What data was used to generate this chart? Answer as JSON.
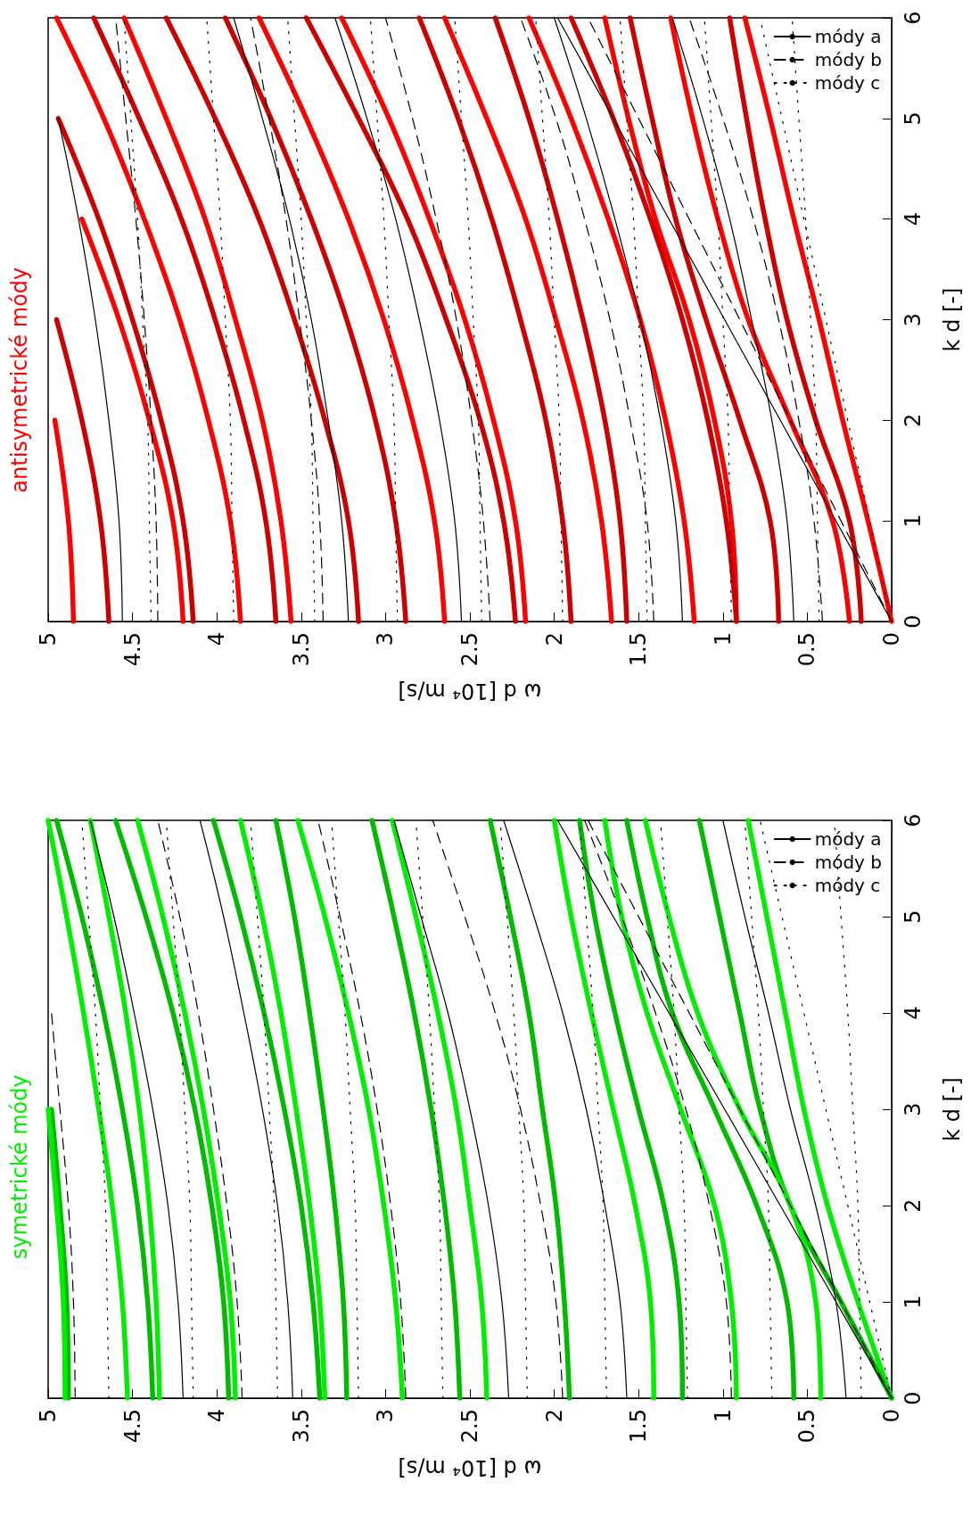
{
  "chart_data": [
    {
      "type": "line",
      "title": "antisymetrické módy",
      "xlabel": "ω d [10⁴ m/s]",
      "ylabel": "k d [-]",
      "xlim": [
        5,
        0
      ],
      "xticks": [
        5,
        4.5,
        4,
        3.5,
        3,
        2.5,
        2,
        1.5,
        1,
        0.5,
        0
      ],
      "ylim": [
        0,
        6
      ],
      "yticks": [
        0,
        1,
        2,
        3,
        4,
        5,
        6
      ],
      "grid": false,
      "legend": "top right",
      "marker": "none",
      "series": [
        {
          "color": "#ff0000",
          "line_style": "solid",
          "x": [
            0,
            0.14,
            0.29,
            0.43,
            0.58,
            0.72,
            0.87
          ],
          "values": [
            0,
            1,
            2,
            3,
            4,
            5,
            6
          ]
        },
        {
          "color": "#cc0000",
          "line_style": "solid",
          "x": [
            0.18,
            0.25,
            0.45,
            0.62,
            0.75,
            0.86,
            0.96
          ],
          "values": [
            0,
            1,
            2,
            3,
            4,
            5,
            6
          ]
        },
        {
          "color": "#ff0000",
          "line_style": "solid",
          "x": [
            0.25,
            0.35,
            0.6,
            0.85,
            1.03,
            1.18,
            1.31
          ],
          "values": [
            0,
            1,
            2,
            3,
            4,
            5,
            6
          ]
        },
        {
          "color": "#cc0000",
          "line_style": "solid",
          "x": [
            0.67,
            0.72,
            0.9,
            1.1,
            1.28,
            1.42,
            1.55
          ],
          "values": [
            0,
            1,
            2,
            3,
            4,
            5,
            6
          ]
        },
        {
          "color": "#ff0000",
          "line_style": "solid",
          "x": [
            0.92,
            0.95,
            1.05,
            1.2,
            1.4,
            1.56,
            1.7
          ],
          "values": [
            0,
            1,
            2,
            3,
            4,
            5,
            6
          ]
        },
        {
          "color": "#cc0000",
          "line_style": "solid",
          "x": [
            0.92,
            0.98,
            1.09,
            1.24,
            1.43,
            1.65,
            1.9
          ],
          "values": [
            0,
            1,
            2,
            3,
            4,
            5,
            6
          ]
        },
        {
          "color": "#ff0000",
          "line_style": "solid",
          "x": [
            1.17,
            1.23,
            1.34,
            1.49,
            1.68,
            1.9,
            2.15
          ],
          "values": [
            0,
            1,
            2,
            3,
            4,
            5,
            6
          ]
        },
        {
          "color": "#cc0000",
          "line_style": "solid",
          "x": [
            1.57,
            1.61,
            1.7,
            1.83,
            1.98,
            2.15,
            2.35
          ],
          "values": [
            0,
            1,
            2,
            3,
            4,
            5,
            6
          ]
        },
        {
          "color": "#ff0000",
          "line_style": "solid",
          "x": [
            1.66,
            1.72,
            1.83,
            1.99,
            2.17,
            2.4,
            2.65
          ],
          "values": [
            0,
            1,
            2,
            3,
            4,
            5,
            6
          ]
        },
        {
          "color": "#cc0000",
          "line_style": "solid",
          "x": [
            1.9,
            1.95,
            2.05,
            2.2,
            2.37,
            2.57,
            2.8
          ],
          "values": [
            0,
            1,
            2,
            3,
            4,
            5,
            6
          ]
        },
        {
          "color": "#ff0000",
          "line_style": "solid",
          "x": [
            2.17,
            2.23,
            2.36,
            2.53,
            2.74,
            2.98,
            3.26
          ],
          "values": [
            0,
            1,
            2,
            3,
            4,
            5,
            6
          ]
        },
        {
          "color": "#cc0000",
          "line_style": "solid",
          "x": [
            2.23,
            2.3,
            2.44,
            2.64,
            2.87,
            3.16,
            3.47
          ],
          "values": [
            0,
            1,
            2,
            3,
            4,
            5,
            6
          ]
        },
        {
          "color": "#ff0000",
          "line_style": "solid",
          "x": [
            2.65,
            2.71,
            2.84,
            3.01,
            3.22,
            3.47,
            3.75
          ],
          "values": [
            0,
            1,
            2,
            3,
            4,
            5,
            6
          ]
        },
        {
          "color": "#cc0000",
          "line_style": "solid",
          "x": [
            2.88,
            2.94,
            3.06,
            3.23,
            3.44,
            3.68,
            3.95
          ],
          "values": [
            0,
            1,
            2,
            3,
            4,
            5,
            6
          ]
        },
        {
          "color": "#cc0000",
          "line_style": "solid",
          "x": [
            3.16,
            3.22,
            3.36,
            3.54,
            3.75,
            4.01,
            4.3
          ],
          "values": [
            0,
            1,
            2,
            3,
            4,
            5,
            6
          ]
        },
        {
          "color": "#ff0000",
          "line_style": "solid",
          "x": [
            3.56,
            3.62,
            3.73,
            3.89,
            4.07,
            4.3,
            4.55
          ],
          "values": [
            0,
            1,
            2,
            3,
            4,
            5,
            6
          ]
        },
        {
          "color": "#cc0000",
          "line_style": "solid",
          "x": [
            3.65,
            3.71,
            3.84,
            4.01,
            4.21,
            4.46,
            4.73
          ],
          "values": [
            0,
            1,
            2,
            3,
            4,
            5,
            6
          ]
        },
        {
          "color": "#ff0000",
          "line_style": "solid",
          "x": [
            3.86,
            3.92,
            4.05,
            4.22,
            4.43,
            4.67,
            4.95
          ],
          "values": [
            0,
            1,
            2,
            3,
            4,
            5,
            6
          ]
        },
        {
          "color": "#cc0000",
          "line_style": "solid",
          "x": [
            4.14,
            4.2,
            4.33,
            4.5,
            4.7,
            4.94
          ],
          "values": [
            0,
            1,
            2,
            3,
            4,
            5
          ]
        },
        {
          "color": "#ff0000",
          "line_style": "solid",
          "x": [
            4.2,
            4.26,
            4.4,
            4.58,
            4.8
          ],
          "values": [
            0,
            1,
            2,
            3,
            4
          ]
        },
        {
          "color": "#cc0000",
          "line_style": "solid",
          "x": [
            4.64,
            4.69,
            4.8,
            4.95
          ],
          "values": [
            0,
            1,
            2,
            3
          ]
        },
        {
          "color": "#ff0000",
          "line_style": "solid",
          "x": [
            4.85,
            4.88,
            4.96
          ],
          "values": [
            0,
            1,
            2
          ]
        },
        {
          "name": "módy a",
          "color": "#000000",
          "line_style": "solid",
          "x": [
            0,
            0.33,
            0.66,
            0.99,
            1.32,
            1.65,
            1.98
          ],
          "values": [
            0,
            1,
            2,
            3,
            4,
            5,
            6
          ]
        },
        {
          "color": "#000000",
          "line_style": "solid",
          "x": [
            0.58,
            0.62,
            0.71,
            0.83,
            0.96,
            1.12,
            1.3
          ],
          "values": [
            0,
            1,
            2,
            3,
            4,
            5,
            6
          ]
        },
        {
          "color": "#000000",
          "line_style": "solid",
          "x": [
            1.24,
            1.28,
            1.37,
            1.49,
            1.64,
            1.81,
            2.0
          ],
          "values": [
            0,
            1,
            2,
            3,
            4,
            5,
            6
          ]
        },
        {
          "color": "#000000",
          "line_style": "solid",
          "x": [
            2.55,
            2.59,
            2.68,
            2.8,
            2.94,
            3.11,
            3.3
          ],
          "values": [
            0,
            1,
            2,
            3,
            4,
            5,
            6
          ]
        },
        {
          "color": "#000000",
          "line_style": "solid",
          "x": [
            3.22,
            3.26,
            3.34,
            3.44,
            3.57,
            3.73,
            3.9
          ],
          "values": [
            0,
            1,
            2,
            3,
            4,
            5,
            6
          ]
        },
        {
          "color": "#000000",
          "line_style": "solid",
          "x": [
            4.56,
            4.58,
            4.64,
            4.72,
            4.82,
            4.94
          ],
          "values": [
            0,
            1,
            2,
            3,
            4,
            5
          ]
        },
        {
          "name": "módy b",
          "color": "#000000",
          "line_style": "dashed",
          "x": [
            0,
            0.3,
            0.6,
            0.9,
            1.2,
            1.5,
            1.8
          ],
          "values": [
            0,
            1,
            2,
            3,
            4,
            5,
            6
          ]
        },
        {
          "color": "#000000",
          "line_style": "dashed",
          "x": [
            0.41,
            0.46,
            0.55,
            0.67,
            0.82,
            1.0,
            1.2
          ],
          "values": [
            0,
            1,
            2,
            3,
            4,
            5,
            6
          ]
        },
        {
          "color": "#000000",
          "line_style": "dashed",
          "x": [
            1.41,
            1.45,
            1.55,
            1.67,
            1.82,
            1.99,
            2.2
          ],
          "values": [
            0,
            1,
            2,
            3,
            4,
            5,
            6
          ]
        },
        {
          "color": "#000000",
          "line_style": "dashed",
          "x": [
            2.38,
            2.42,
            2.49,
            2.58,
            2.7,
            2.84,
            3.0
          ],
          "values": [
            0,
            1,
            2,
            3,
            4,
            5,
            6
          ]
        },
        {
          "color": "#000000",
          "line_style": "dashed",
          "x": [
            3.37,
            3.39,
            3.44,
            3.51,
            3.59,
            3.69,
            3.8
          ],
          "values": [
            0,
            1,
            2,
            3,
            4,
            5,
            6
          ]
        },
        {
          "color": "#000000",
          "line_style": "dashed",
          "x": [
            4.35,
            4.36,
            4.39,
            4.43,
            4.48,
            4.54,
            4.6
          ],
          "values": [
            0,
            1,
            2,
            3,
            4,
            5,
            6
          ]
        },
        {
          "name": "módy c",
          "color": "#000000",
          "line_style": "dotted",
          "x": [
            0,
            0.13,
            0.26,
            0.39,
            0.52,
            0.65,
            0.78
          ],
          "values": [
            0,
            1,
            2,
            3,
            4,
            5,
            6
          ]
        },
        {
          "color": "#000000",
          "line_style": "dotted",
          "x": [
            0.43,
            0.44,
            0.45,
            0.48,
            0.51,
            0.55,
            0.59
          ],
          "values": [
            0,
            1,
            2,
            3,
            4,
            5,
            6
          ]
        },
        {
          "color": "#000000",
          "line_style": "dotted",
          "x": [
            0.95,
            0.96,
            0.97,
            1.0,
            1.03,
            1.07,
            1.11
          ],
          "values": [
            0,
            1,
            2,
            3,
            4,
            5,
            6
          ]
        },
        {
          "color": "#000000",
          "line_style": "dotted",
          "x": [
            1.45,
            1.46,
            1.47,
            1.5,
            1.53,
            1.57,
            1.61
          ],
          "values": [
            0,
            1,
            2,
            3,
            4,
            5,
            6
          ]
        },
        {
          "color": "#000000",
          "line_style": "dotted",
          "x": [
            1.95,
            1.96,
            1.97,
            2.0,
            2.03,
            2.07,
            2.11
          ],
          "values": [
            0,
            1,
            2,
            3,
            4,
            5,
            6
          ]
        },
        {
          "color": "#000000",
          "line_style": "dotted",
          "x": [
            2.43,
            2.44,
            2.45,
            2.48,
            2.51,
            2.55,
            2.59
          ],
          "values": [
            0,
            1,
            2,
            3,
            4,
            5,
            6
          ]
        },
        {
          "color": "#000000",
          "line_style": "dotted",
          "x": [
            2.93,
            2.94,
            2.95,
            2.98,
            3.01,
            3.05,
            3.09
          ],
          "values": [
            0,
            1,
            2,
            3,
            4,
            5,
            6
          ]
        },
        {
          "color": "#000000",
          "line_style": "dotted",
          "x": [
            3.42,
            3.43,
            3.44,
            3.47,
            3.5,
            3.54,
            3.58
          ],
          "values": [
            0,
            1,
            2,
            3,
            4,
            5,
            6
          ]
        },
        {
          "color": "#000000",
          "line_style": "dotted",
          "x": [
            3.9,
            3.91,
            3.92,
            3.95,
            3.98,
            4.02,
            4.06
          ],
          "values": [
            0,
            1,
            2,
            3,
            4,
            5,
            6
          ]
        },
        {
          "color": "#000000",
          "line_style": "dotted",
          "x": [
            4.39,
            4.4,
            4.41,
            4.44,
            4.47,
            4.51,
            4.55
          ],
          "values": [
            0,
            1,
            2,
            3,
            4,
            5,
            6
          ]
        }
      ]
    },
    {
      "type": "line",
      "title": "symetrické módy",
      "xlabel": "ω d [10⁴ m/s]",
      "ylabel": "k d [-]",
      "xlim": [
        5,
        0
      ],
      "xticks": [
        5,
        4.5,
        4,
        3.5,
        3,
        2.5,
        2,
        1.5,
        1,
        0.5,
        0
      ],
      "ylim": [
        0,
        6
      ],
      "yticks": [
        0,
        1,
        2,
        3,
        4,
        5,
        6
      ],
      "grid": false,
      "legend": "top right",
      "marker": "none",
      "series": [
        {
          "color": "#00ee00",
          "line_style": "solid",
          "x": [
            0,
            0.2,
            0.38,
            0.52,
            0.63,
            0.74,
            0.85
          ],
          "values": [
            0,
            1,
            2,
            3,
            4,
            5,
            6
          ]
        },
        {
          "color": "#00bb00",
          "line_style": "solid",
          "x": [
            0,
            0.3,
            0.6,
            0.78,
            0.9,
            1.02,
            1.14
          ],
          "values": [
            0,
            1,
            2,
            3,
            4,
            5,
            6
          ]
        },
        {
          "color": "#00ee00",
          "line_style": "solid",
          "x": [
            0.42,
            0.45,
            0.6,
            0.9,
            1.15,
            1.32,
            1.46
          ],
          "values": [
            0,
            1,
            2,
            3,
            4,
            5,
            6
          ]
        },
        {
          "color": "#00bb00",
          "line_style": "solid",
          "x": [
            0.58,
            0.62,
            0.8,
            1.05,
            1.3,
            1.45,
            1.57
          ],
          "values": [
            0,
            1,
            2,
            3,
            4,
            5,
            6
          ]
        },
        {
          "color": "#00ee00",
          "line_style": "solid",
          "x": [
            0.92,
            0.95,
            1.05,
            1.25,
            1.45,
            1.6,
            1.7
          ],
          "values": [
            0,
            1,
            2,
            3,
            4,
            5,
            6
          ]
        },
        {
          "color": "#00bb00",
          "line_style": "solid",
          "x": [
            1.24,
            1.26,
            1.35,
            1.5,
            1.64,
            1.76,
            1.85
          ],
          "values": [
            0,
            1,
            2,
            3,
            4,
            5,
            6
          ]
        },
        {
          "color": "#00ee00",
          "line_style": "solid",
          "x": [
            1.41,
            1.43,
            1.52,
            1.65,
            1.78,
            1.9,
            2.0
          ],
          "values": [
            0,
            1,
            2,
            3,
            4,
            5,
            6
          ]
        },
        {
          "color": "#00bb00",
          "line_style": "solid",
          "x": [
            1.91,
            1.94,
            1.99,
            2.07,
            2.15,
            2.26,
            2.38
          ],
          "values": [
            0,
            1,
            2,
            3,
            4,
            5,
            6
          ]
        },
        {
          "color": "#00ee00",
          "line_style": "solid",
          "x": [
            2.4,
            2.43,
            2.5,
            2.58,
            2.69,
            2.82,
            2.96
          ],
          "values": [
            0,
            1,
            2,
            3,
            4,
            5,
            6
          ]
        },
        {
          "color": "#00bb00",
          "line_style": "solid",
          "x": [
            2.56,
            2.59,
            2.65,
            2.73,
            2.83,
            2.95,
            3.08
          ],
          "values": [
            0,
            1,
            2,
            3,
            4,
            5,
            6
          ]
        },
        {
          "color": "#00ee00",
          "line_style": "solid",
          "x": [
            2.9,
            2.94,
            3.01,
            3.1,
            3.22,
            3.36,
            3.52
          ],
          "values": [
            0,
            1,
            2,
            3,
            4,
            5,
            6
          ]
        },
        {
          "color": "#00bb00",
          "line_style": "solid",
          "x": [
            3.23,
            3.25,
            3.3,
            3.37,
            3.45,
            3.54,
            3.65
          ],
          "values": [
            0,
            1,
            2,
            3,
            4,
            5,
            6
          ]
        },
        {
          "color": "#00ee00",
          "line_style": "solid",
          "x": [
            3.36,
            3.39,
            3.45,
            3.53,
            3.62,
            3.73,
            3.86
          ],
          "values": [
            0,
            1,
            2,
            3,
            4,
            5,
            6
          ]
        },
        {
          "color": "#00bb00",
          "line_style": "solid",
          "x": [
            3.39,
            3.43,
            3.5,
            3.6,
            3.72,
            3.86,
            4.02
          ],
          "values": [
            0,
            1,
            2,
            3,
            4,
            5,
            6
          ]
        },
        {
          "color": "#00ee00",
          "line_style": "solid",
          "x": [
            3.89,
            3.92,
            3.99,
            4.08,
            4.19,
            4.32,
            4.47
          ],
          "values": [
            0,
            1,
            2,
            3,
            4,
            5,
            6
          ]
        },
        {
          "color": "#00bb00",
          "line_style": "solid",
          "x": [
            3.93,
            3.96,
            4.03,
            4.13,
            4.26,
            4.42,
            4.6
          ],
          "values": [
            0,
            1,
            2,
            3,
            4,
            5,
            6
          ]
        },
        {
          "color": "#00ee00",
          "line_style": "solid",
          "x": [
            4.34,
            4.36,
            4.4,
            4.46,
            4.54,
            4.64,
            4.75
          ],
          "values": [
            0,
            1,
            2,
            3,
            4,
            5,
            6
          ]
        },
        {
          "color": "#00bb00",
          "line_style": "solid",
          "x": [
            4.38,
            4.41,
            4.47,
            4.56,
            4.67,
            4.8,
            4.95
          ],
          "values": [
            0,
            1,
            2,
            3,
            4,
            5,
            6
          ]
        },
        {
          "color": "#00ee00",
          "line_style": "solid",
          "x": [
            4.53,
            4.56,
            4.62,
            4.7,
            4.79,
            4.89,
            5.0
          ],
          "values": [
            0,
            1,
            2,
            3,
            4,
            5,
            6
          ]
        },
        {
          "color": "#00bb00",
          "line_style": "solid",
          "x": [
            4.88,
            4.89,
            4.93,
            4.98
          ],
          "values": [
            0,
            1,
            2,
            3
          ]
        },
        {
          "color": "#00ee00",
          "line_style": "solid",
          "x": [
            4.9,
            4.91,
            4.95,
            5.0
          ],
          "values": [
            0,
            1,
            2,
            3
          ]
        },
        {
          "name": "módy a",
          "color": "#000000",
          "line_style": "solid",
          "x": [
            0,
            0.33,
            0.66,
            0.99,
            1.32,
            1.65,
            1.98
          ],
          "values": [
            0,
            1,
            2,
            3,
            4,
            5,
            6
          ]
        },
        {
          "color": "#000000",
          "line_style": "solid",
          "x": [
            0.27,
            0.33,
            0.45,
            0.6,
            0.73,
            0.87,
            1.0
          ],
          "values": [
            0,
            1,
            2,
            3,
            4,
            5,
            6
          ]
        },
        {
          "color": "#000000",
          "line_style": "solid",
          "x": [
            1.57,
            1.61,
            1.7,
            1.81,
            1.95,
            2.12,
            2.3
          ],
          "values": [
            0,
            1,
            2,
            3,
            4,
            5,
            6
          ]
        },
        {
          "color": "#000000",
          "line_style": "solid",
          "x": [
            2.27,
            2.31,
            2.39,
            2.5,
            2.63,
            2.79,
            2.95
          ],
          "values": [
            0,
            1,
            2,
            3,
            4,
            5,
            6
          ]
        },
        {
          "color": "#000000",
          "line_style": "solid",
          "x": [
            3.55,
            3.58,
            3.64,
            3.73,
            3.84,
            3.96,
            4.1
          ],
          "values": [
            0,
            1,
            2,
            3,
            4,
            5,
            6
          ]
        },
        {
          "color": "#000000",
          "line_style": "solid",
          "x": [
            4.2,
            4.23,
            4.29,
            4.38,
            4.49,
            4.61,
            4.75
          ],
          "values": [
            0,
            1,
            2,
            3,
            4,
            5,
            6
          ]
        },
        {
          "name": "módy b",
          "color": "#000000",
          "line_style": "dashed",
          "x": [
            0,
            0.3,
            0.6,
            0.9,
            1.2,
            1.5,
            1.8
          ],
          "values": [
            0,
            1,
            2,
            3,
            4,
            5,
            6
          ]
        },
        {
          "color": "#000000",
          "line_style": "dashed",
          "x": [
            0.95,
            0.98,
            1.08,
            1.22,
            1.4,
            1.6,
            1.82
          ],
          "values": [
            0,
            1,
            2,
            3,
            4,
            5,
            6
          ]
        },
        {
          "color": "#000000",
          "line_style": "dashed",
          "x": [
            1.95,
            1.99,
            2.08,
            2.2,
            2.35,
            2.53,
            2.72
          ],
          "values": [
            0,
            1,
            2,
            3,
            4,
            5,
            6
          ]
        },
        {
          "color": "#000000",
          "line_style": "dashed",
          "x": [
            2.88,
            2.91,
            2.97,
            3.05,
            3.15,
            3.27,
            3.4
          ],
          "values": [
            0,
            1,
            2,
            3,
            4,
            5,
            6
          ]
        },
        {
          "color": "#000000",
          "line_style": "dashed",
          "x": [
            3.85,
            3.88,
            3.94,
            4.02,
            4.11,
            4.22,
            4.35
          ],
          "values": [
            0,
            1,
            2,
            3,
            4,
            5,
            6
          ]
        },
        {
          "color": "#000000",
          "line_style": "dashed",
          "x": [
            4.84,
            4.85,
            4.88,
            4.93,
            4.98
          ],
          "values": [
            0,
            1,
            2,
            3,
            4
          ]
        },
        {
          "name": "módy c",
          "color": "#000000",
          "line_style": "dotted",
          "x": [
            0,
            0.13,
            0.26,
            0.39,
            0.52,
            0.65,
            0.78
          ],
          "values": [
            0,
            1,
            2,
            3,
            4,
            5,
            6
          ]
        },
        {
          "color": "#000000",
          "line_style": "dotted",
          "x": [
            0.18,
            0.19,
            0.2,
            0.23,
            0.26,
            0.3,
            0.34
          ],
          "values": [
            0,
            1,
            2,
            3,
            4,
            5,
            6
          ]
        },
        {
          "color": "#000000",
          "line_style": "dotted",
          "x": [
            0.71,
            0.72,
            0.73,
            0.76,
            0.79,
            0.83,
            0.87
          ],
          "values": [
            0,
            1,
            2,
            3,
            4,
            5,
            6
          ]
        },
        {
          "color": "#000000",
          "line_style": "dotted",
          "x": [
            1.21,
            1.22,
            1.23,
            1.26,
            1.29,
            1.33,
            1.37
          ],
          "values": [
            0,
            1,
            2,
            3,
            4,
            5,
            6
          ]
        },
        {
          "color": "#000000",
          "line_style": "dotted",
          "x": [
            1.69,
            1.7,
            1.71,
            1.74,
            1.77,
            1.81,
            1.85
          ],
          "values": [
            0,
            1,
            2,
            3,
            4,
            5,
            6
          ]
        },
        {
          "color": "#000000",
          "line_style": "dotted",
          "x": [
            2.16,
            2.17,
            2.18,
            2.21,
            2.24,
            2.28,
            2.32
          ],
          "values": [
            0,
            1,
            2,
            3,
            4,
            5,
            6
          ]
        },
        {
          "color": "#000000",
          "line_style": "dotted",
          "x": [
            2.66,
            2.67,
            2.68,
            2.71,
            2.74,
            2.78,
            2.82
          ],
          "values": [
            0,
            1,
            2,
            3,
            4,
            5,
            6
          ]
        },
        {
          "color": "#000000",
          "line_style": "dotted",
          "x": [
            3.16,
            3.17,
            3.18,
            3.21,
            3.24,
            3.28,
            3.32
          ],
          "values": [
            0,
            1,
            2,
            3,
            4,
            5,
            6
          ]
        },
        {
          "color": "#000000",
          "line_style": "dotted",
          "x": [
            3.64,
            3.65,
            3.66,
            3.69,
            3.72,
            3.76,
            3.8
          ],
          "values": [
            0,
            1,
            2,
            3,
            4,
            5,
            6
          ]
        },
        {
          "color": "#000000",
          "line_style": "dotted",
          "x": [
            4.14,
            4.15,
            4.16,
            4.19,
            4.22,
            4.26,
            4.3
          ],
          "values": [
            0,
            1,
            2,
            3,
            4,
            5,
            6
          ]
        },
        {
          "color": "#000000",
          "line_style": "dotted",
          "x": [
            4.64,
            4.65,
            4.66,
            4.69,
            4.72,
            4.76,
            4.8
          ],
          "values": [
            0,
            1,
            2,
            3,
            4,
            5,
            6
          ]
        }
      ]
    }
  ]
}
